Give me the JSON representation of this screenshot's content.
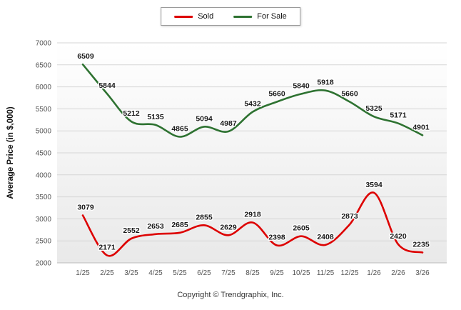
{
  "legend": {
    "items": [
      {
        "label": "Sold",
        "color": "#dd0000"
      },
      {
        "label": "For Sale",
        "color": "#2e7231"
      }
    ]
  },
  "chart_data": {
    "type": "line",
    "x": [
      "1/25",
      "2/25",
      "3/25",
      "4/25",
      "5/25",
      "6/25",
      "7/25",
      "8/25",
      "9/25",
      "10/25",
      "11/25",
      "12/25",
      "1/26",
      "2/26",
      "3/26"
    ],
    "series": [
      {
        "name": "Sold",
        "color": "#dd0000",
        "values": [
          3079,
          2171,
          2552,
          2653,
          2685,
          2855,
          2629,
          2918,
          2398,
          2605,
          2408,
          2873,
          3594,
          2420,
          2235
        ]
      },
      {
        "name": "For Sale",
        "color": "#2e7231",
        "values": [
          6509,
          5844,
          5212,
          5135,
          4865,
          5094,
          4987,
          5432,
          5660,
          5840,
          5918,
          5660,
          5325,
          5171,
          4901
        ]
      }
    ],
    "title": "",
    "xlabel": "",
    "ylabel": "Average Price (in $,000)",
    "ylim": [
      2000,
      7000
    ],
    "ytick_step": 500,
    "grid": true,
    "legend_position": "top"
  },
  "footer": {
    "text": "Copyright © Trendgraphix, Inc."
  }
}
